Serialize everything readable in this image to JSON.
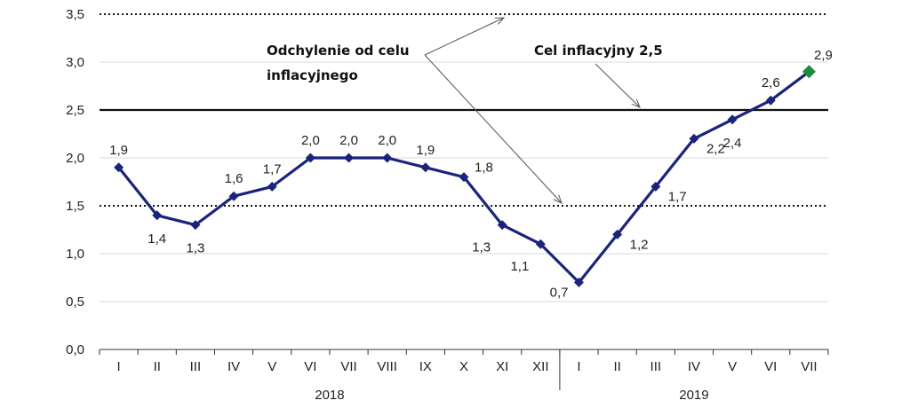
{
  "chart_data": {
    "type": "line",
    "categories": [
      "I",
      "II",
      "III",
      "IV",
      "V",
      "VI",
      "VII",
      "VIII",
      "IX",
      "X",
      "XI",
      "XII",
      "I",
      "II",
      "III",
      "IV",
      "V",
      "VI",
      "VII"
    ],
    "groups": [
      {
        "label": "2018",
        "count": 12
      },
      {
        "label": "2019",
        "count": 7
      }
    ],
    "series": [
      {
        "values": [
          1.9,
          1.4,
          1.3,
          1.6,
          1.7,
          2.0,
          2.0,
          2.0,
          1.9,
          1.8,
          1.3,
          1.1,
          0.7,
          1.2,
          1.7,
          2.2,
          2.4,
          2.6,
          2.9
        ],
        "labels": [
          "1,9",
          "1,4",
          "1,3",
          "1,6",
          "1,7",
          "2,0",
          "2,0",
          "2,0",
          "1,9",
          "1,8",
          "1,3",
          "1,1",
          "0,7",
          "1,2",
          "1,7",
          "2,2",
          "2,4",
          "2,6",
          "2,9"
        ],
        "color": "#1a237e",
        "last_marker_color": "#1e8c3a"
      }
    ],
    "ylim": [
      0,
      3.5
    ],
    "yticks": [
      0,
      0.5,
      1.0,
      1.5,
      2.0,
      2.5,
      3.0,
      3.5
    ],
    "ytick_labels": [
      "0,0",
      "0,5",
      "1,0",
      "1,5",
      "2,0",
      "2,5",
      "3,0",
      "3,5"
    ],
    "reference_lines": [
      {
        "value": 2.5,
        "style": "solid"
      },
      {
        "value": 3.5,
        "style": "dotted"
      },
      {
        "value": 1.5,
        "style": "dotted"
      }
    ],
    "annotations": {
      "deviation_line1": "Odchylenie od celu",
      "deviation_line2": "inflacyjnego",
      "target": "Cel inflacyjny 2,5"
    },
    "grid": true,
    "xlabel": "",
    "ylabel": "",
    "title": ""
  }
}
